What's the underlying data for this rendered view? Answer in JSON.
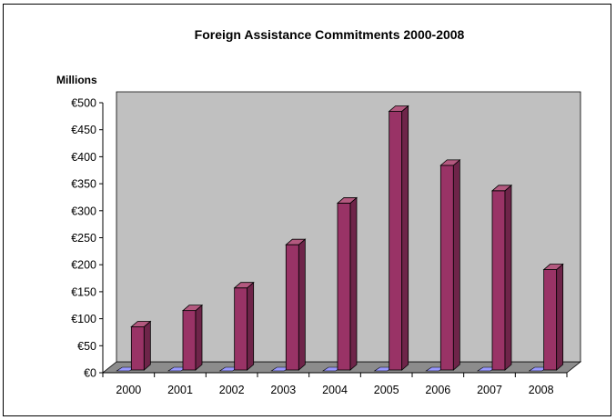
{
  "chart_data": {
    "type": "bar",
    "title": "Foreign Assistance Commitments 2000-2008",
    "unit_label": "Millions",
    "categories": [
      "2000",
      "2001",
      "2002",
      "2003",
      "2004",
      "2005",
      "2006",
      "2007",
      "2008"
    ],
    "values": [
      80,
      110,
      152,
      232,
      309,
      479,
      379,
      332,
      186
    ],
    "ylim": [
      0,
      500
    ],
    "y_ticks": [
      0,
      50,
      100,
      150,
      200,
      250,
      300,
      350,
      400,
      450,
      500
    ],
    "y_tick_labels": [
      "€0",
      "€50",
      "€100",
      "€150",
      "€200",
      "€250",
      "€300",
      "€350",
      "€400",
      "€450",
      "€500"
    ],
    "grid": false,
    "legend": "none",
    "colors": {
      "bar_front": "#993366",
      "bar_top": "#B3597F",
      "bar_side": "#6E2449",
      "wall": "#C0C0C0",
      "floor": "#8C8C8C",
      "floor_marker": "#9999FF"
    }
  }
}
